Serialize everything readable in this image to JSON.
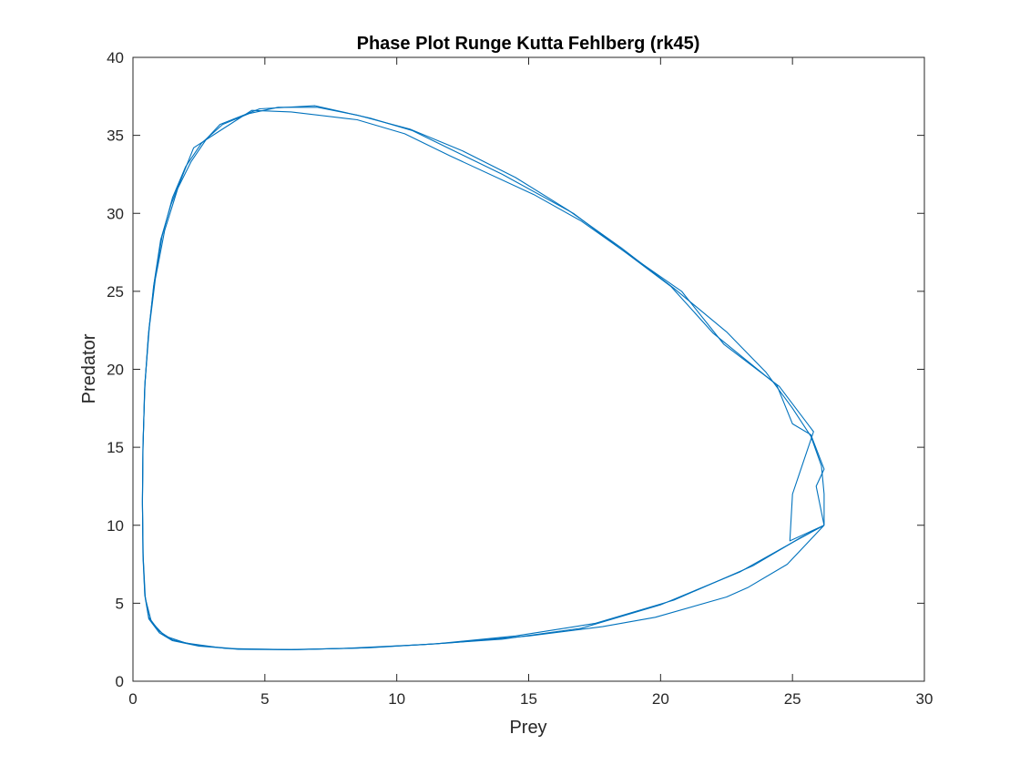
{
  "chart_data": {
    "type": "line",
    "title": "Phase Plot Runge Kutta Fehlberg (rk45)",
    "xlabel": "Prey",
    "ylabel": "Predator",
    "xlim": [
      0,
      30
    ],
    "ylim": [
      0,
      40
    ],
    "xticks": [
      0,
      5,
      10,
      15,
      20,
      25,
      30
    ],
    "yticks": [
      0,
      5,
      10,
      15,
      20,
      25,
      30,
      35,
      40
    ],
    "grid": false,
    "line_color": "#0072BD",
    "series": [
      {
        "points": [
          [
            26.2,
            10.0
          ],
          [
            25.0,
            8.9
          ],
          [
            23.0,
            7.0
          ],
          [
            20.0,
            4.9
          ],
          [
            17.0,
            3.4
          ],
          [
            14.0,
            2.7
          ],
          [
            11.0,
            2.35
          ],
          [
            8.0,
            2.1
          ],
          [
            6.0,
            2.02
          ],
          [
            4.0,
            2.05
          ],
          [
            2.5,
            2.25
          ],
          [
            1.5,
            2.6
          ],
          [
            1.0,
            3.1
          ],
          [
            0.6,
            4.0
          ],
          [
            0.45,
            5.5
          ],
          [
            0.38,
            8.0
          ],
          [
            0.36,
            11.5
          ],
          [
            0.38,
            15.0
          ],
          [
            0.45,
            19.0
          ],
          [
            0.6,
            22.5
          ],
          [
            0.8,
            25.5
          ],
          [
            1.1,
            28.5
          ],
          [
            1.5,
            31.0
          ],
          [
            2.0,
            33.0
          ],
          [
            2.6,
            34.5
          ],
          [
            3.4,
            35.7
          ],
          [
            4.4,
            36.4
          ],
          [
            5.5,
            36.8
          ],
          [
            7.0,
            36.8
          ],
          [
            8.5,
            36.3
          ],
          [
            10.5,
            35.4
          ],
          [
            12.5,
            34.0
          ],
          [
            14.5,
            32.3
          ],
          [
            16.5,
            30.2
          ],
          [
            18.5,
            27.8
          ],
          [
            20.5,
            25.2
          ],
          [
            22.5,
            22.4
          ],
          [
            24.0,
            19.8
          ],
          [
            25.0,
            17.5
          ],
          [
            25.7,
            15.7
          ],
          [
            26.1,
            13.8
          ],
          [
            26.2,
            12.0
          ],
          [
            26.2,
            10.0
          ]
        ]
      },
      {
        "points": [
          [
            26.2,
            10.0
          ],
          [
            25.3,
            9.2
          ],
          [
            23.5,
            7.4
          ],
          [
            20.5,
            5.2
          ],
          [
            17.5,
            3.7
          ],
          [
            14.5,
            2.9
          ],
          [
            11.5,
            2.4
          ],
          [
            8.5,
            2.12
          ],
          [
            6.0,
            2.03
          ],
          [
            4.0,
            2.06
          ],
          [
            2.5,
            2.28
          ],
          [
            1.5,
            2.65
          ],
          [
            1.0,
            3.2
          ],
          [
            0.6,
            4.1
          ],
          [
            0.45,
            5.6
          ],
          [
            0.38,
            8.2
          ],
          [
            0.36,
            11.7
          ],
          [
            0.38,
            15.2
          ],
          [
            0.46,
            19.2
          ],
          [
            0.62,
            22.7
          ],
          [
            0.85,
            25.8
          ],
          [
            1.2,
            28.9
          ],
          [
            1.7,
            31.6
          ],
          [
            2.2,
            33.3
          ],
          [
            2.8,
            34.8
          ],
          [
            3.3,
            35.7
          ],
          [
            4.8,
            36.7
          ],
          [
            6.9,
            36.9
          ],
          [
            9.0,
            36.1
          ],
          [
            10.6,
            35.3
          ],
          [
            14.0,
            32.5
          ],
          [
            16.7,
            30.0
          ],
          [
            20.4,
            25.3
          ],
          [
            22.0,
            22.3
          ],
          [
            24.4,
            19.0
          ],
          [
            25.0,
            16.5
          ],
          [
            25.7,
            15.8
          ],
          [
            26.2,
            13.6
          ],
          [
            25.9,
            12.5
          ],
          [
            26.2,
            10.0
          ]
        ]
      },
      {
        "points": [
          [
            26.2,
            10.0
          ],
          [
            24.8,
            7.5
          ],
          [
            23.3,
            6.0
          ],
          [
            22.5,
            5.4
          ],
          [
            19.8,
            4.1
          ],
          [
            17.8,
            3.5
          ],
          [
            15.0,
            2.9
          ],
          [
            12.0,
            2.45
          ],
          [
            9.0,
            2.15
          ],
          [
            6.0,
            2.02
          ],
          [
            3.5,
            2.1
          ],
          [
            2.0,
            2.45
          ],
          [
            1.2,
            2.9
          ],
          [
            0.7,
            3.8
          ],
          [
            0.47,
            5.3
          ],
          [
            0.39,
            7.9
          ],
          [
            0.36,
            11.3
          ],
          [
            0.38,
            14.8
          ],
          [
            0.44,
            18.6
          ],
          [
            0.58,
            22.1
          ],
          [
            0.78,
            25.3
          ],
          [
            1.05,
            28.3
          ],
          [
            1.45,
            30.6
          ],
          [
            1.9,
            32.5
          ],
          [
            2.3,
            34.2
          ],
          [
            3.3,
            35.3
          ],
          [
            4.5,
            36.6
          ],
          [
            6.0,
            36.5
          ],
          [
            8.5,
            36.0
          ],
          [
            10.3,
            35.1
          ],
          [
            12.0,
            33.7
          ],
          [
            15.2,
            31.2
          ],
          [
            17.0,
            29.5
          ],
          [
            18.5,
            27.7
          ],
          [
            20.8,
            25.0
          ],
          [
            22.4,
            21.6
          ],
          [
            24.5,
            18.9
          ],
          [
            25.8,
            16.0
          ],
          [
            25.0,
            12.0
          ],
          [
            24.9,
            9.0
          ],
          [
            26.2,
            10.0
          ]
        ]
      }
    ]
  }
}
